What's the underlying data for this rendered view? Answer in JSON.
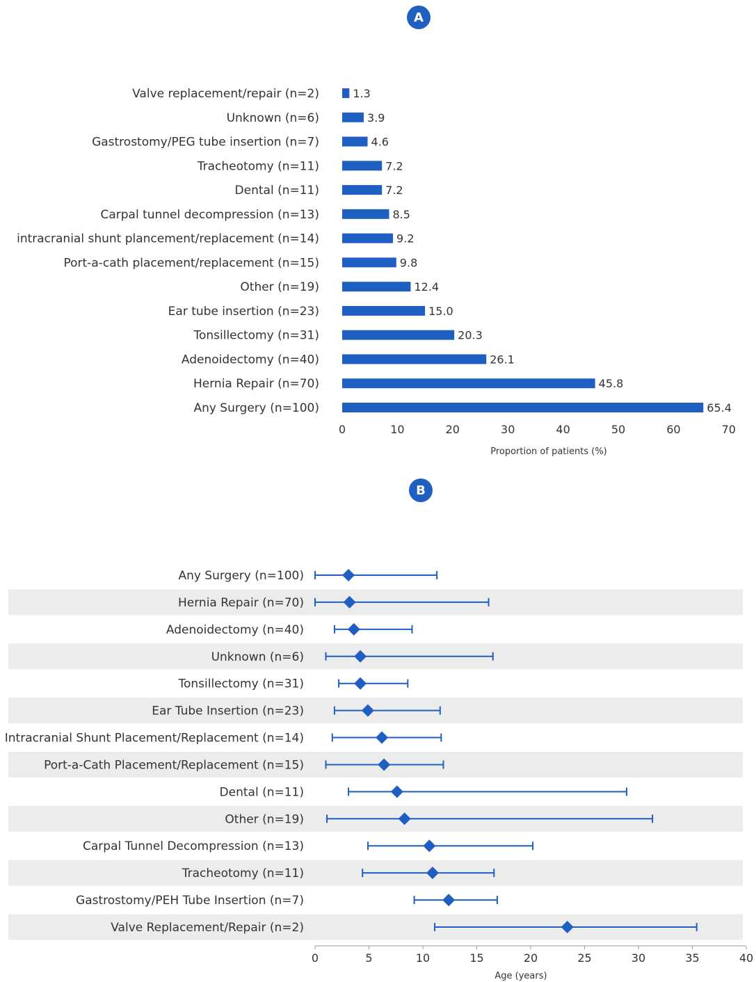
{
  "panel_a": {
    "badge": "A",
    "colors": {
      "bar": "#1f5fc1",
      "badge": "#1f5fc1"
    },
    "chart_data": {
      "type": "bar",
      "orientation": "horizontal",
      "categories": [
        "Valve replacement/repair (n=2)",
        "Unknown (n=6)",
        "Gastrostomy/PEG tube insertion (n=7)",
        "Tracheotomy (n=11)",
        "Dental (n=11)",
        "Carpal tunnel decompression (n=13)",
        "intracranial shunt plancement/replacement (n=14)",
        "Port-a-cath placement/replacement (n=15)",
        "Other (n=19)",
        "Ear tube insertion (n=23)",
        "Tonsillectomy  (n=31)",
        "Adenoidectomy  (n=40)",
        "Hernia Repair (n=70)",
        "Any Surgery (n=100)"
      ],
      "values": [
        1.3,
        3.9,
        4.6,
        7.2,
        7.2,
        8.5,
        9.2,
        9.8,
        12.4,
        15.0,
        20.3,
        26.1,
        45.8,
        65.4
      ],
      "value_labels": [
        "1.3",
        "3.9",
        "4.6",
        "7.2",
        "7.2",
        "8.5",
        "9.2",
        "9.8",
        "12.4",
        "15.0",
        "20.3",
        "26.1",
        "45.8",
        "65.4"
      ],
      "xlabel": "Proportion of patients (%)",
      "xlim": [
        0,
        70
      ],
      "xticks": [
        "0",
        "10",
        "20",
        "30",
        "40",
        "50",
        "60",
        "70"
      ],
      "grid": false
    }
  },
  "panel_b": {
    "badge": "B",
    "colors": {
      "marker": "#1f5fc1",
      "band": "#ececec",
      "axis": "#999999"
    },
    "chart_data": {
      "type": "scatter",
      "subtype": "point-with-range",
      "categories": [
        "Any Surgery (n=100)",
        "Hernia Repair (n=70)",
        "Adenoidectomy (n=40)",
        "Unknown (n=6)",
        "Tonsillectomy (n=31)",
        "Ear Tube Insertion (n=23)",
        "Intracranial Shunt Placement/Replacement (n=14)",
        "Port-a-Cath Placement/Replacement (n=15)",
        "Dental (n=11)",
        "Other (n=19)",
        "Carpal Tunnel Decompression (n=13)",
        "Tracheotomy (n=11)",
        "Gastrostomy/PEH Tube Insertion (n=7)",
        "Valve Replacement/Repair (n=2)"
      ],
      "center": [
        3.1,
        3.2,
        3.6,
        4.2,
        4.2,
        4.9,
        6.2,
        6.4,
        7.6,
        8.3,
        10.6,
        10.9,
        12.4,
        23.4
      ],
      "low": [
        0.0,
        0.0,
        1.8,
        1.0,
        2.2,
        1.8,
        1.6,
        1.0,
        3.1,
        1.1,
        4.9,
        4.4,
        9.2,
        11.1
      ],
      "high": [
        11.3,
        16.1,
        9.0,
        16.5,
        8.6,
        11.6,
        11.7,
        11.9,
        28.9,
        31.3,
        20.2,
        16.6,
        16.9,
        35.4
      ],
      "xlabel": "Age (years)",
      "xlim": [
        0,
        40
      ],
      "xticks": [
        "0",
        "5",
        "10",
        "15",
        "20",
        "25",
        "30",
        "35",
        "40"
      ],
      "grid": false,
      "alternating_row_bands": true
    }
  }
}
